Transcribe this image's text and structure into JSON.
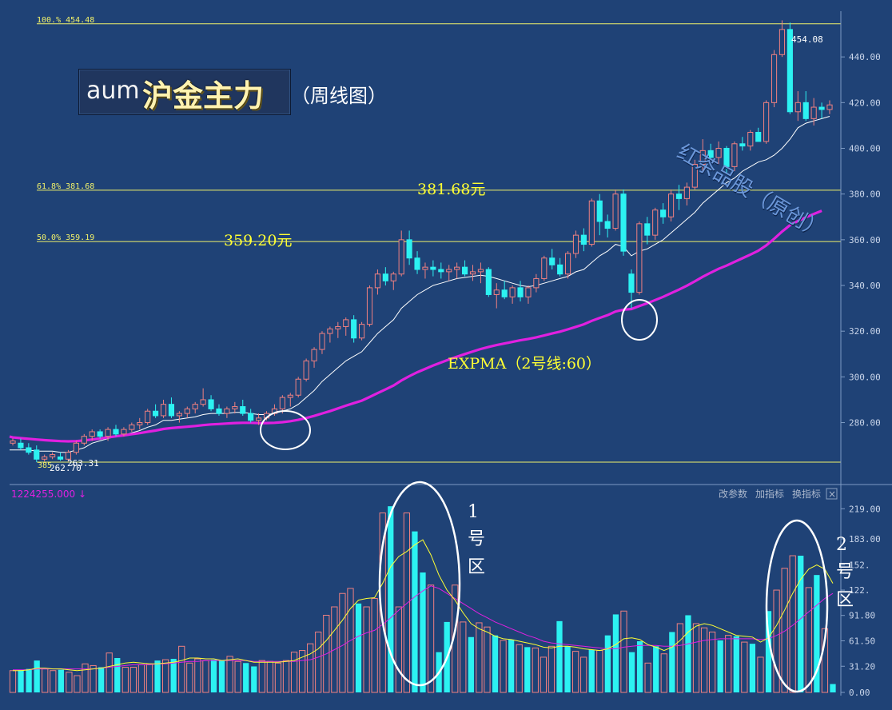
{
  "header": {
    "ticker": "aum",
    "name": "沪金主力",
    "period": "（周线图）",
    "watermark": "红茶品股（原创）"
  },
  "toolbar": {
    "volume_readout": "1224255.000 ↓",
    "btn_params": "改参数",
    "btn_add": "加指标",
    "btn_switch": "换指标",
    "btn_close": "×"
  },
  "annotations": {
    "level_381": "381.68元",
    "level_359": "359.20元",
    "expma_label": "EXPMA（2号线:60）",
    "zone1": [
      "1",
      "号",
      "区"
    ],
    "zone2": [
      "2",
      "号",
      "区"
    ],
    "high_marker": "454.08",
    "low_marker_a": "262.70",
    "low_marker_b": "263.31",
    "low_marker_prefix": "385"
  },
  "colors": {
    "background": "#1f4276",
    "up": "#f08080",
    "down": "#2cf2f2",
    "expma_short": "#ffffff",
    "expma_long": "#e020e0",
    "fib": "#f1f16a",
    "vol_ma_short": "#ffff33",
    "vol_ma_long": "#e020e0",
    "circle": "#ffffff"
  },
  "chart_data": [
    {
      "type": "candlestick",
      "title": "aum 沪金主力（周线图）",
      "ylim": [
        255,
        460
      ],
      "y_ticks": [
        280,
        300,
        320,
        340,
        360,
        380,
        400,
        420,
        440
      ],
      "y_tick_labels": [
        "280.00",
        "300.00",
        "320.00",
        "340.00",
        "360.00",
        "380.00",
        "400.00",
        "420.00",
        "440.00"
      ],
      "fib_levels": [
        {
          "label": "100.% 454.48",
          "value": 454.48
        },
        {
          "label": "61.8% 381.68",
          "value": 381.68
        },
        {
          "label": "50.0% 359.19",
          "value": 359.19
        },
        {
          "label": "",
          "value": 262.7
        }
      ],
      "series_ohlc": [
        [
          271,
          273,
          270,
          272
        ],
        [
          271,
          273,
          268,
          269
        ],
        [
          269,
          271,
          266,
          267
        ],
        [
          268,
          270,
          262.7,
          264
        ],
        [
          264,
          266,
          263,
          265
        ],
        [
          265,
          267,
          264,
          266
        ],
        [
          265,
          267,
          263.31,
          264
        ],
        [
          264,
          268,
          263,
          267
        ],
        [
          267,
          272,
          266,
          271
        ],
        [
          271,
          275,
          270,
          274
        ],
        [
          274,
          277,
          272,
          276
        ],
        [
          276,
          277,
          273,
          274
        ],
        [
          274,
          278,
          272,
          277
        ],
        [
          277,
          279,
          274,
          275
        ],
        [
          275,
          278,
          274,
          277
        ],
        [
          277,
          280,
          276,
          279
        ],
        [
          279,
          282,
          277,
          280
        ],
        [
          280,
          286,
          279,
          285
        ],
        [
          285,
          288,
          282,
          283
        ],
        [
          283,
          290,
          282,
          288
        ],
        [
          288,
          291,
          282,
          283
        ],
        [
          283,
          285,
          280,
          284
        ],
        [
          284,
          287,
          282,
          286
        ],
        [
          286,
          289,
          284,
          288
        ],
        [
          288,
          295,
          287,
          290
        ],
        [
          290,
          292,
          285,
          286
        ],
        [
          286,
          288,
          283,
          284
        ],
        [
          284,
          287,
          282,
          286
        ],
        [
          286,
          289,
          284,
          287
        ],
        [
          287,
          290,
          283,
          284
        ],
        [
          284,
          286,
          280,
          281
        ],
        [
          281,
          284,
          279,
          282
        ],
        [
          282,
          285,
          281,
          284
        ],
        [
          284,
          288,
          283,
          286
        ],
        [
          286,
          292,
          284,
          291
        ],
        [
          291,
          293,
          287,
          292
        ],
        [
          292,
          300,
          291,
          299
        ],
        [
          299,
          308,
          298,
          307
        ],
        [
          307,
          313,
          304,
          312
        ],
        [
          312,
          320,
          310,
          319
        ],
        [
          319,
          322,
          315,
          321
        ],
        [
          321,
          324,
          317,
          322
        ],
        [
          322,
          326,
          318,
          325
        ],
        [
          325,
          327,
          315,
          317
        ],
        [
          317,
          324,
          316,
          323
        ],
        [
          323,
          340,
          322,
          339
        ],
        [
          339,
          347,
          336,
          345
        ],
        [
          345,
          348,
          340,
          342
        ],
        [
          342,
          346,
          338,
          345
        ],
        [
          345,
          364,
          344,
          360
        ],
        [
          360,
          364,
          349,
          352
        ],
        [
          352,
          355,
          345,
          347
        ],
        [
          347,
          350,
          343,
          348
        ],
        [
          348,
          351,
          344,
          347
        ],
        [
          347,
          350,
          343,
          346
        ],
        [
          346,
          349,
          342,
          347
        ],
        [
          347,
          350,
          343,
          348
        ],
        [
          348,
          351,
          344,
          345
        ],
        [
          345,
          349,
          342,
          346
        ],
        [
          346,
          350,
          341,
          347
        ],
        [
          347,
          348,
          335,
          336
        ],
        [
          336,
          341,
          330,
          338
        ],
        [
          338,
          342,
          334,
          335
        ],
        [
          335,
          340,
          332,
          339
        ],
        [
          339,
          342,
          333,
          335
        ],
        [
          335,
          340,
          332,
          339
        ],
        [
          339,
          345,
          337,
          343
        ],
        [
          343,
          353,
          342,
          352
        ],
        [
          352,
          356,
          347,
          349
        ],
        [
          349,
          352,
          344,
          345
        ],
        [
          345,
          355,
          343,
          354
        ],
        [
          354,
          364,
          352,
          362
        ],
        [
          362,
          365,
          355,
          358
        ],
        [
          358,
          378,
          357,
          377
        ],
        [
          377,
          380,
          362,
          368
        ],
        [
          368,
          371,
          361,
          365
        ],
        [
          365,
          382,
          364,
          380
        ],
        [
          380,
          382,
          353,
          355
        ],
        [
          345,
          347,
          330,
          337
        ],
        [
          337,
          368,
          336,
          367
        ],
        [
          367,
          370,
          358,
          362
        ],
        [
          362,
          374,
          360,
          373
        ],
        [
          373,
          376,
          367,
          370
        ],
        [
          370,
          382,
          368,
          380
        ],
        [
          380,
          384,
          373,
          378
        ],
        [
          378,
          385,
          375,
          383
        ],
        [
          383,
          395,
          382,
          393
        ],
        [
          393,
          404,
          390,
          399
        ],
        [
          399,
          402,
          395,
          396
        ],
        [
          396,
          403,
          393,
          400
        ],
        [
          400,
          401,
          389,
          392
        ],
        [
          392,
          403,
          390,
          402
        ],
        [
          402,
          405,
          399,
          401
        ],
        [
          401,
          408,
          399,
          407
        ],
        [
          407,
          409,
          403,
          403
        ],
        [
          403,
          421,
          402,
          420
        ],
        [
          420,
          443,
          418,
          441
        ],
        [
          441,
          456,
          440,
          452
        ],
        [
          452,
          455,
          415,
          416
        ],
        [
          416,
          425,
          412,
          420
        ],
        [
          420,
          425,
          412,
          413
        ],
        [
          413,
          422,
          410,
          418
        ],
        [
          418,
          420,
          413,
          417
        ],
        [
          417,
          421,
          415,
          419
        ]
      ],
      "series_lines": [
        {
          "name": "EXPMA 1",
          "color": "#ffffff",
          "points": [
            268,
            268,
            268,
            267.5,
            267.5,
            267.5,
            267,
            267,
            268,
            269,
            271,
            272,
            273,
            274,
            274.5,
            275.5,
            276.5,
            278,
            279,
            281,
            281,
            281.5,
            282,
            282.5,
            283.5,
            284,
            284,
            284,
            284.5,
            284.5,
            284,
            283.5,
            283.5,
            284,
            285,
            286,
            288,
            291,
            294,
            298,
            301,
            304,
            307,
            309,
            311,
            315,
            319,
            322,
            325,
            330,
            333,
            336,
            338,
            340,
            341,
            342,
            343,
            343.5,
            344,
            344.5,
            344,
            343,
            342,
            341,
            340,
            339.5,
            340,
            341,
            342,
            343,
            344,
            346,
            347,
            350,
            353,
            355,
            358,
            357,
            353,
            355,
            356,
            358,
            360,
            363,
            366,
            369,
            372,
            376,
            379,
            382,
            385,
            387,
            390,
            392,
            394,
            395,
            397,
            400,
            404,
            409,
            411,
            412,
            413,
            414
          ]
        },
        {
          "name": "EXPMA（2号线:60）",
          "color": "#e020e0",
          "points": [
            273.5,
            273.2,
            272.9,
            272.6,
            272.3,
            272.1,
            271.9,
            271.8,
            271.9,
            272.2,
            272.6,
            273,
            273.5,
            274,
            274.4,
            274.9,
            275.4,
            276,
            276.5,
            277.2,
            277.6,
            277.9,
            278.2,
            278.5,
            278.9,
            279.2,
            279.4,
            279.6,
            279.8,
            279.9,
            279.9,
            279.8,
            279.8,
            279.9,
            280.2,
            280.6,
            281.2,
            282,
            282.9,
            284,
            285,
            286.2,
            287.4,
            288.5,
            289.6,
            291.2,
            292.9,
            294.5,
            296.2,
            298.4,
            300.3,
            302,
            303.5,
            305,
            306.3,
            307.6,
            308.8,
            310,
            311.1,
            312.2,
            313.1,
            313.9,
            314.6,
            315.3,
            316,
            316.6,
            317.3,
            318.1,
            319,
            319.8,
            320.8,
            321.9,
            323,
            324.5,
            325.8,
            327,
            328.6,
            329.4,
            329.7,
            331,
            332.2,
            333.6,
            335,
            336.6,
            338.2,
            339.9,
            341.8,
            343.8,
            345.6,
            347.3,
            348.7,
            350.3,
            351.9,
            353.5,
            355.2,
            357.5,
            360.4,
            363.6,
            366.4,
            368.2,
            369.8,
            371.3,
            372.7
          ]
        }
      ],
      "volume": {
        "y_ticks": [
          0,
          31.2,
          61.5,
          91.8,
          122,
          152,
          183,
          219
        ],
        "y_tick_labels": [
          "0.00",
          "31.20",
          "61.50",
          "91.80",
          "122.",
          "152.",
          "183.00",
          "219.00"
        ],
        "ylim": [
          0,
          225
        ],
        "values": [
          26,
          27,
          28,
          38,
          28,
          26,
          27,
          24,
          20,
          34,
          32,
          30,
          47,
          41,
          30,
          30,
          33,
          34,
          38,
          39,
          40,
          55,
          35,
          40,
          38,
          39,
          38,
          43,
          37,
          35,
          31,
          38,
          37,
          35,
          38,
          48,
          50,
          58,
          72,
          92,
          102,
          118,
          124,
          106,
          102,
          112,
          214,
          222,
          102,
          214,
          192,
          143,
          128,
          48,
          84,
          128,
          84,
          66,
          83,
          78,
          68,
          62,
          63,
          57,
          54,
          53,
          42,
          55,
          85,
          55,
          49,
          42,
          51,
          50,
          68,
          93,
          97,
          48,
          61,
          35,
          55,
          46,
          72,
          82,
          92,
          82,
          77,
          72,
          62,
          68,
          67,
          60,
          58,
          42,
          97,
          122,
          148,
          163,
          163,
          125,
          140,
          76,
          10
        ],
        "ma_short": [
          26,
          26,
          27,
          29,
          29,
          28,
          28,
          27,
          26,
          27,
          28,
          29,
          31,
          33,
          35,
          36,
          35,
          34,
          34,
          35,
          36,
          38,
          41,
          41,
          40,
          40,
          38,
          39,
          40,
          38,
          36,
          36,
          36,
          36,
          37,
          38,
          42,
          46,
          52,
          62,
          74,
          86,
          100,
          110,
          112,
          113,
          130,
          150,
          162,
          168,
          176,
          182,
          164,
          140,
          122,
          110,
          95,
          82,
          76,
          72,
          67,
          64,
          63,
          61,
          59,
          57,
          54,
          53,
          55,
          55,
          54,
          52,
          51,
          50,
          52,
          57,
          64,
          65,
          63,
          57,
          54,
          50,
          54,
          62,
          72,
          79,
          82,
          80,
          76,
          72,
          68,
          67,
          66,
          60,
          65,
          80,
          98,
          118,
          135,
          147,
          152,
          147,
          130
        ],
        "ma_long": [
          27,
          27,
          27,
          28,
          28,
          28,
          28,
          28,
          28,
          28,
          28,
          29,
          30,
          31,
          32,
          33,
          33,
          33,
          34,
          34,
          35,
          36,
          37,
          37,
          38,
          38,
          38,
          38,
          38,
          38,
          37,
          37,
          37,
          37,
          37,
          37,
          38,
          39,
          42,
          46,
          51,
          56,
          62,
          67,
          71,
          74,
          81,
          89,
          98,
          106,
          114,
          121,
          127,
          124,
          118,
          112,
          106,
          100,
          94,
          89,
          84,
          80,
          76,
          72,
          68,
          65,
          61,
          59,
          58,
          57,
          56,
          55,
          54,
          53,
          52,
          52,
          54,
          55,
          56,
          56,
          56,
          55,
          55,
          56,
          58,
          60,
          62,
          63,
          64,
          64,
          64,
          64,
          64,
          63,
          64,
          68,
          73,
          80,
          88,
          96,
          104,
          112,
          118
        ]
      }
    }
  ]
}
